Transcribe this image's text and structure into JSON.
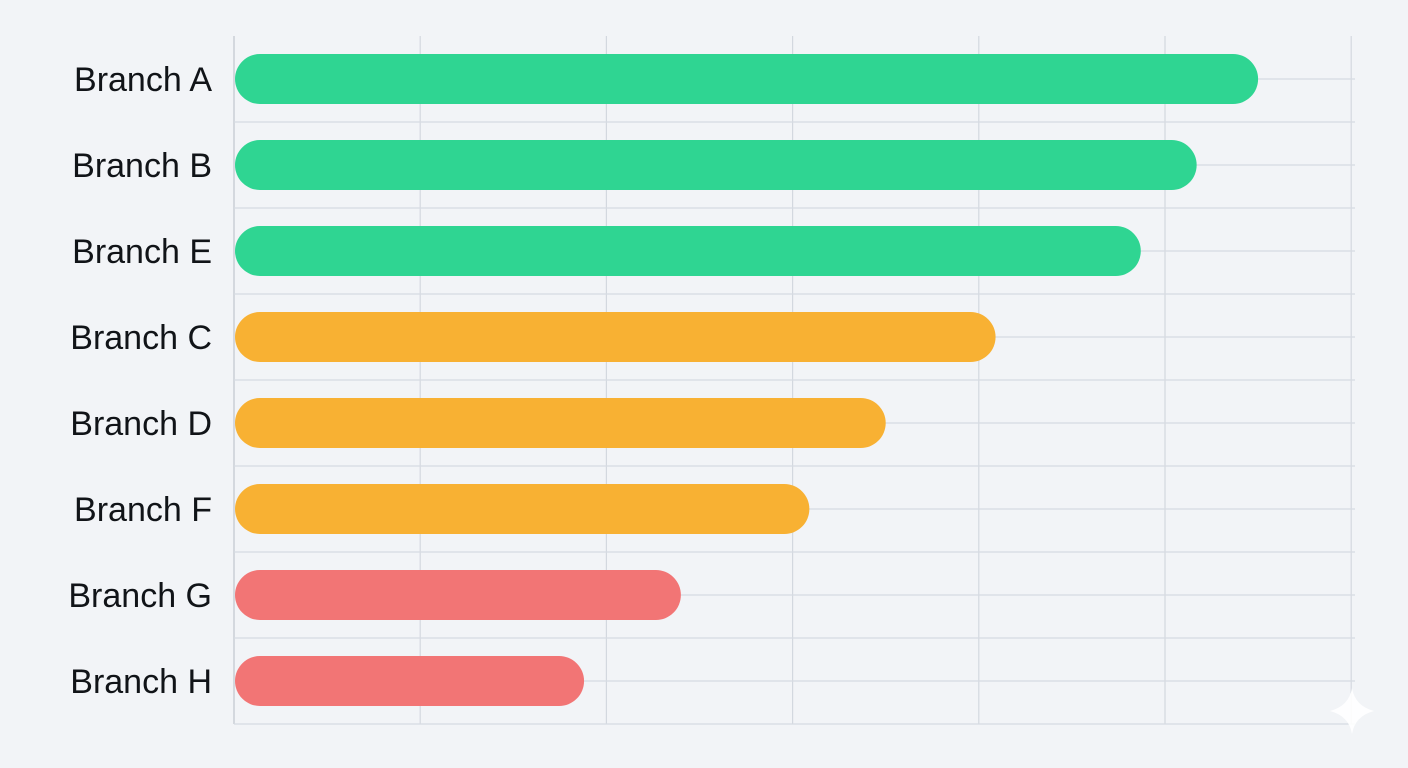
{
  "chart_data": {
    "type": "bar",
    "orientation": "horizontal",
    "categories": [
      "Branch A",
      "Branch B",
      "Branch E",
      "Branch C",
      "Branch D",
      "Branch F",
      "Branch G",
      "Branch H"
    ],
    "values": [
      5.5,
      5.17,
      4.87,
      4.09,
      3.5,
      3.09,
      2.4,
      1.88
    ],
    "xlim": [
      0,
      6
    ],
    "grid": true,
    "legend": "none",
    "colors": [
      "#2fd592",
      "#2fd592",
      "#2fd592",
      "#f8b133",
      "#f8b133",
      "#f8b133",
      "#f27575",
      "#f27575"
    ]
  }
}
